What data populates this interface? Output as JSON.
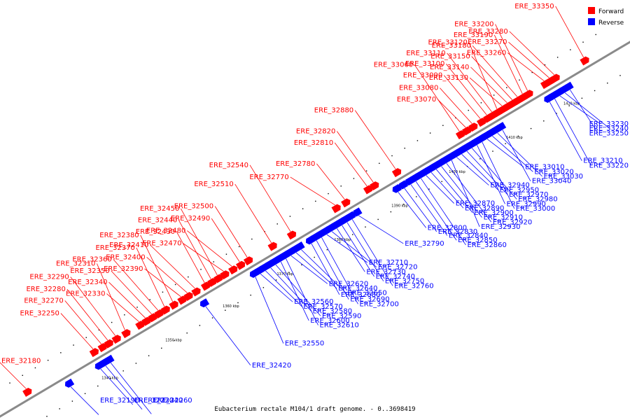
{
  "caption": "Eubacterium rectale M104/1 draft genome. - 0..3698419",
  "legend": {
    "forward_label": "Forward",
    "reverse_label": "Reverse",
    "forward_color": "#ff0000",
    "reverse_color": "#0000ff"
  },
  "colors": {
    "backbone": "#8a8a8a",
    "forward_gene": "#ff0000",
    "reverse_gene": "#0000ff",
    "forward_line": "#ff0000",
    "reverse_line": "#0000ff",
    "small_feature": "#000000"
  },
  "scale_labels": [
    {
      "text": "1340 kbp",
      "pos": 0.155
    },
    {
      "text": "1350 kbp",
      "pos": 0.255
    },
    {
      "text": "1360 kbp",
      "pos": 0.345
    },
    {
      "text": "1370 kbp",
      "pos": 0.43
    },
    {
      "text": "1380 kbp",
      "pos": 0.52
    },
    {
      "text": "1390 kbp",
      "pos": 0.61
    },
    {
      "text": "1400 kbp",
      "pos": 0.7
    },
    {
      "text": "1410 kbp",
      "pos": 0.79
    },
    {
      "text": "1420 kbp",
      "pos": 0.88
    }
  ],
  "forward_genes": [
    {
      "label": "ERE_32180",
      "pos": 0.055
    },
    {
      "label": "ERE_32250",
      "pos": 0.16
    },
    {
      "label": "ERE_32270",
      "pos": 0.173
    },
    {
      "label": "ERE_32280",
      "pos": 0.183
    },
    {
      "label": "ERE_32290",
      "pos": 0.195
    },
    {
      "label": "ERE_32310",
      "pos": 0.21
    },
    {
      "label": "ERE_32330",
      "pos": 0.232
    },
    {
      "label": "ERE_32340",
      "pos": 0.242
    },
    {
      "label": "ERE_32350",
      "pos": 0.252
    },
    {
      "label": "ERE_32360",
      "pos": 0.262
    },
    {
      "label": "ERE_32370",
      "pos": 0.272
    },
    {
      "label": "ERE_32380",
      "pos": 0.285
    },
    {
      "label": "ERE_32390",
      "pos": 0.298
    },
    {
      "label": "ERE_32400",
      "pos": 0.308
    },
    {
      "label": "ERE_32410",
      "pos": 0.32
    },
    {
      "label": "ERE_32430",
      "pos": 0.335
    },
    {
      "label": "ERE_32440",
      "pos": 0.345
    },
    {
      "label": "ERE_32450",
      "pos": 0.355
    },
    {
      "label": "ERE_32470",
      "pos": 0.365
    },
    {
      "label": "ERE_32480",
      "pos": 0.378
    },
    {
      "label": "ERE_32490",
      "pos": 0.39
    },
    {
      "label": "ERE_32500",
      "pos": 0.402
    },
    {
      "label": "ERE_32510",
      "pos": 0.44
    },
    {
      "label": "ERE_32540",
      "pos": 0.47
    },
    {
      "label": "ERE_32770",
      "pos": 0.54
    },
    {
      "label": "ERE_32780",
      "pos": 0.555
    },
    {
      "label": "ERE_32810",
      "pos": 0.59
    },
    {
      "label": "ERE_32820",
      "pos": 0.6
    },
    {
      "label": "ERE_32880",
      "pos": 0.635
    },
    {
      "label": "ERE_33060",
      "pos": 0.735
    },
    {
      "label": "ERE_33070",
      "pos": 0.745
    },
    {
      "label": "ERE_33080",
      "pos": 0.755
    },
    {
      "label": "ERE_33090",
      "pos": 0.768
    },
    {
      "label": "ERE_33100",
      "pos": 0.778
    },
    {
      "label": "ERE_33110",
      "pos": 0.786
    },
    {
      "label": "ERE_33120",
      "pos": 0.794
    },
    {
      "label": "ERE_33130",
      "pos": 0.802
    },
    {
      "label": "ERE_33140",
      "pos": 0.81
    },
    {
      "label": "ERE_33150",
      "pos": 0.818
    },
    {
      "label": "ERE_33180",
      "pos": 0.826
    },
    {
      "label": "ERE_33190",
      "pos": 0.834
    },
    {
      "label": "ERE_33200",
      "pos": 0.842
    },
    {
      "label": "ERE_33260",
      "pos": 0.868
    },
    {
      "label": "ERE_33270",
      "pos": 0.876
    },
    {
      "label": "ERE_33280",
      "pos": 0.884
    },
    {
      "label": "ERE_33350",
      "pos": 0.93
    }
  ],
  "reverse_genes": [
    {
      "label": "ERE_32190",
      "pos": 0.108
    },
    {
      "label": "ERE_32230",
      "pos": 0.155
    },
    {
      "label": "ERE_32240",
      "pos": 0.163
    },
    {
      "label": "ERE_32260",
      "pos": 0.171
    },
    {
      "label": "ERE_32420",
      "pos": 0.32
    },
    {
      "label": "ERE_32550",
      "pos": 0.398
    },
    {
      "label": "ERE_32560",
      "pos": 0.406
    },
    {
      "label": "ERE_32570",
      "pos": 0.414
    },
    {
      "label": "ERE_32580",
      "pos": 0.422
    },
    {
      "label": "ERE_32590",
      "pos": 0.43
    },
    {
      "label": "ERE_32600",
      "pos": 0.438
    },
    {
      "label": "ERE_32610",
      "pos": 0.446
    },
    {
      "label": "ERE_32620",
      "pos": 0.454
    },
    {
      "label": "ERE_32640",
      "pos": 0.462
    },
    {
      "label": "ERE_32650",
      "pos": 0.47
    },
    {
      "label": "ERE_32680",
      "pos": 0.486
    },
    {
      "label": "ERE_32690",
      "pos": 0.494
    },
    {
      "label": "ERE_32700",
      "pos": 0.502
    },
    {
      "label": "ERE_32710",
      "pos": 0.51
    },
    {
      "label": "ERE_32720",
      "pos": 0.518
    },
    {
      "label": "ERE_32730",
      "pos": 0.526
    },
    {
      "label": "ERE_32740",
      "pos": 0.534
    },
    {
      "label": "ERE_32750",
      "pos": 0.542
    },
    {
      "label": "ERE_32760",
      "pos": 0.55
    },
    {
      "label": "ERE_32790",
      "pos": 0.56
    },
    {
      "label": "ERE_32800",
      "pos": 0.622
    },
    {
      "label": "ERE_32830",
      "pos": 0.632
    },
    {
      "label": "ERE_32840",
      "pos": 0.642
    },
    {
      "label": "ERE_32850",
      "pos": 0.65
    },
    {
      "label": "ERE_32860",
      "pos": 0.658
    },
    {
      "label": "ERE_32870",
      "pos": 0.666
    },
    {
      "label": "ERE_32890",
      "pos": 0.674
    },
    {
      "label": "ERE_32900",
      "pos": 0.682
    },
    {
      "label": "ERE_32910",
      "pos": 0.69
    },
    {
      "label": "ERE_32920",
      "pos": 0.698
    },
    {
      "label": "ERE_32930",
      "pos": 0.706
    },
    {
      "label": "ERE_32940",
      "pos": 0.714
    },
    {
      "label": "ERE_32950",
      "pos": 0.722
    },
    {
      "label": "ERE_32970",
      "pos": 0.73
    },
    {
      "label": "ERE_32980",
      "pos": 0.738
    },
    {
      "label": "ERE_32990",
      "pos": 0.746
    },
    {
      "label": "ERE_33000",
      "pos": 0.754
    },
    {
      "label": "ERE_33010",
      "pos": 0.762
    },
    {
      "label": "ERE_33020",
      "pos": 0.77
    },
    {
      "label": "ERE_33030",
      "pos": 0.778
    },
    {
      "label": "ERE_33040",
      "pos": 0.786
    },
    {
      "label": "ERE_33210",
      "pos": 0.86
    },
    {
      "label": "ERE_33220",
      "pos": 0.868
    },
    {
      "label": "ERE_33230",
      "pos": 0.876
    },
    {
      "label": "ERE_33240",
      "pos": 0.884
    },
    {
      "label": "ERE_33250",
      "pos": 0.892
    }
  ]
}
